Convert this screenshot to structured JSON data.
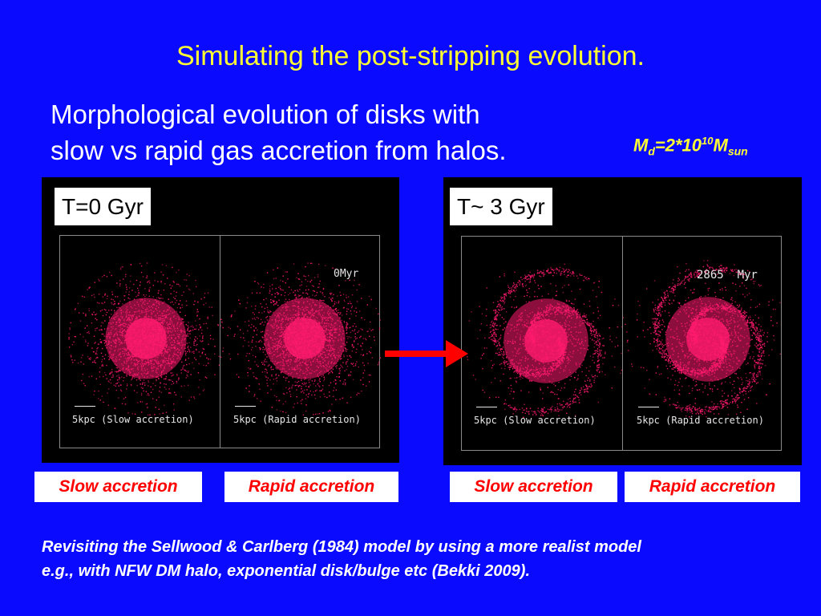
{
  "slide": {
    "title": "Simulating the post-stripping evolution.",
    "subtitle_line1": "Morphological evolution of disks with",
    "subtitle_line2": "slow vs rapid gas accretion from halos.",
    "mass_label": {
      "m": "M",
      "m_sub": "d",
      "eq": "=2*10",
      "exp": "10",
      "m2": "M",
      "m2_sub": "sun"
    },
    "footnote_line1": "Revisiting the Sellwood & Carlberg (1984) model by using a more realist model",
    "footnote_line2": "e.g., with NFW DM halo,  exponential disk/bulge etc (Bekki 2009)."
  },
  "panels": [
    {
      "time_label": "T=0 Gyr",
      "timestamp": "0Myr",
      "left_caption": "5kpc (Slow accretion)",
      "right_caption": "5kpc (Rapid accretion)"
    },
    {
      "time_label": "T~ 3 Gyr",
      "timestamp": "2865  Myr",
      "left_caption": "5kpc (Slow accretion)",
      "right_caption": "5kpc (Rapid accretion)"
    }
  ],
  "labels": {
    "slow_1": "Slow  accretion",
    "rapid_1": "Rapid  accretion",
    "slow_2": "Slow  accretion",
    "rapid_2": "Rapid  accretion"
  },
  "colors": {
    "background": "#0a0aff",
    "title": "#ffff33",
    "galaxy": "#ff1a6e",
    "arrow": "#ff0000",
    "label_text": "#ff0000"
  }
}
